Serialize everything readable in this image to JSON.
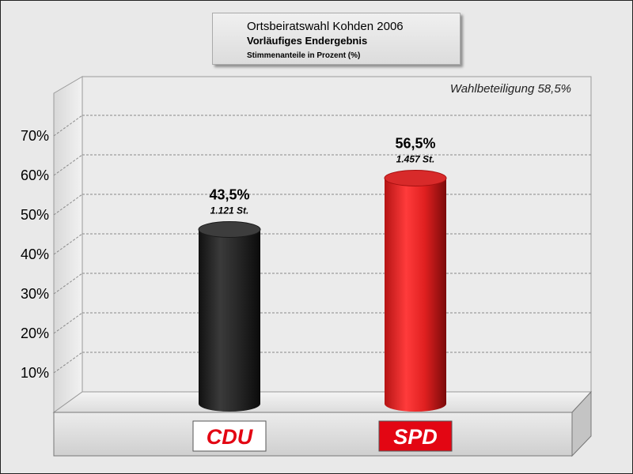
{
  "chart_data": {
    "type": "bar",
    "title": "Ortsbeiratswahl Kohden 2006",
    "subtitle": "Vorläufiges Endergebnis",
    "ylabel": "Stimmenanteile in Prozent (%)",
    "annotation": "Wahlbeteiligung 58,5%",
    "categories": [
      "CDU",
      "SPD"
    ],
    "values": [
      43.5,
      56.5
    ],
    "value_labels": [
      "43,5%",
      "56,5%"
    ],
    "vote_labels": [
      "1.121 St.",
      "1.457 St."
    ],
    "colors": [
      "#2b2b2b",
      "#e42a2a"
    ],
    "yticks": [
      10,
      20,
      30,
      40,
      50,
      60,
      70
    ],
    "ytick_labels": [
      "10%",
      "20%",
      "30%",
      "40%",
      "50%",
      "60%",
      "70%"
    ],
    "ylim": [
      0,
      80
    ],
    "grid": true,
    "logos": [
      {
        "text": "CDU",
        "text_color": "#e30613",
        "background": "#ffffff"
      },
      {
        "text": "SPD",
        "text_color": "#ffffff",
        "background": "#e30613"
      }
    ]
  }
}
